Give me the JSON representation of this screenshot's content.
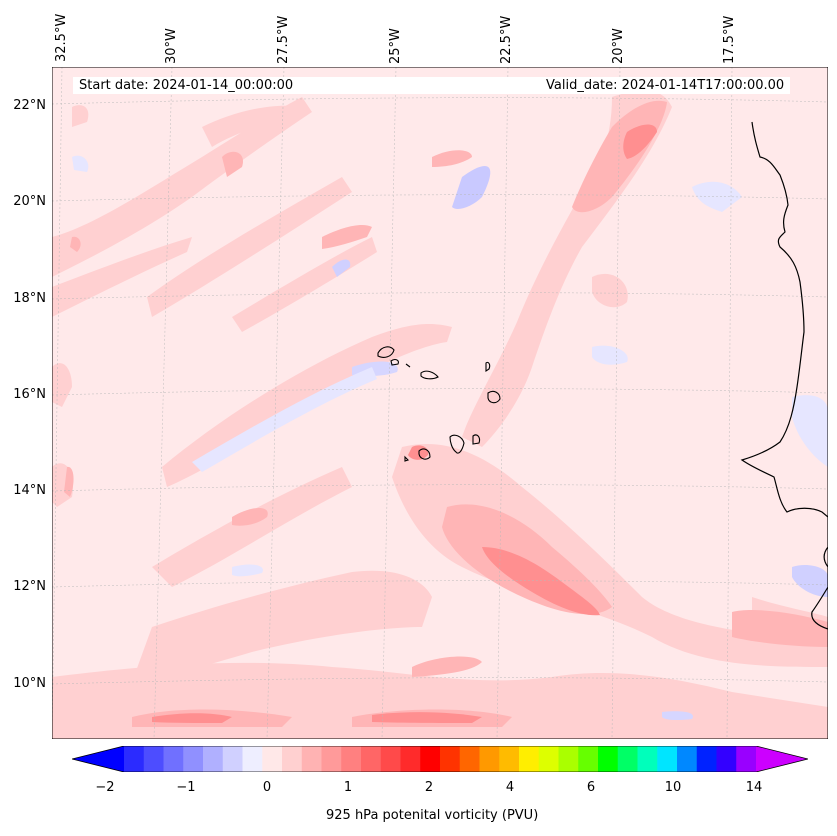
{
  "map": {
    "start_date": "Start date: 2024-01-14_00:00:00",
    "valid_date": "Valid_date: 2024-01-14T17:00:00.00",
    "longitude_labels": [
      "32.5°W",
      "30°W",
      "27.5°W",
      "25°W",
      "22.5°W",
      "20°W",
      "17.5°W"
    ],
    "latitude_labels": [
      "22°N",
      "20°N",
      "18°N",
      "16°N",
      "14°N",
      "12°N",
      "10°N"
    ],
    "coastline_icon": "coastline-icon",
    "islands_icon": "cape-verde-islands-icon"
  },
  "colorbar": {
    "title": "925 hPa potenital vorticity (PVU)",
    "tick_labels": [
      "−2",
      "−1",
      "0",
      "1",
      "2",
      "4",
      "6",
      "10",
      "14"
    ],
    "colors": [
      "#0000ff",
      "#2b2bff",
      "#4d4dff",
      "#7070ff",
      "#9090ff",
      "#b0b0ff",
      "#d0d0ff",
      "#eeeeff",
      "#ffe8e8",
      "#ffd0d0",
      "#ffb3b3",
      "#ff9a9a",
      "#ff8080",
      "#ff6666",
      "#ff4a4a",
      "#ff2b2b",
      "#ff0000",
      "#ff3300",
      "#ff6600",
      "#ff9900",
      "#ffbb00",
      "#ffee00",
      "#ddff00",
      "#aaff00",
      "#66ff00",
      "#00ff00",
      "#00ff66",
      "#00ffbb",
      "#00e5ff",
      "#0088ff",
      "#0022ff",
      "#3300ff",
      "#9900ff",
      "#cc00ff"
    ],
    "under_color": "#0000ff",
    "over_color": "#cc00ff"
  }
}
